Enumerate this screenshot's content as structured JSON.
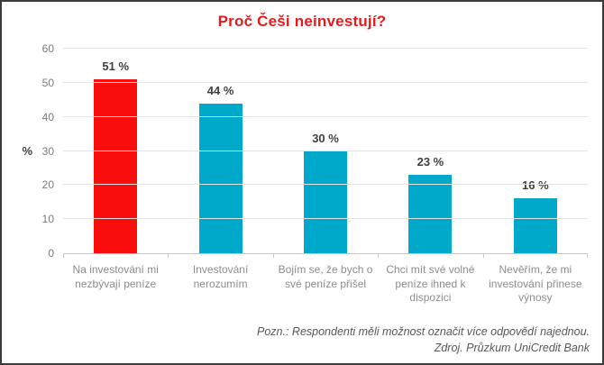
{
  "title": "Proč Češi neinvestují?",
  "colors": {
    "title_red": "#e11c1c",
    "bar_red": "#fa0d0d",
    "bar_teal": "#00a9ca",
    "gridline": "#e4e4e4",
    "axis_line": "#c8c8c8",
    "value_label": "#3f3f3f",
    "category_label": "#8c8c8c",
    "footer_text": "#565656",
    "frame_border": "#3b3b3b"
  },
  "chart_data": {
    "type": "bar",
    "title": "Proč Češi neinvestují?",
    "categories": [
      "Na investování mi nezbývají peníze",
      "Investování nerozumím",
      "Bojím se, že bych o své peníze přišel",
      "Chci mít své volné peníze ihned k dispozici",
      "Nevěřím, že mi investování přinese výnosy"
    ],
    "values": [
      51,
      44,
      30,
      23,
      16
    ],
    "value_labels": [
      "51 %",
      "44 %",
      "30 %",
      "23 %",
      "16 %"
    ],
    "bar_colors": [
      "#fa0d0d",
      "#00a9ca",
      "#00a9ca",
      "#00a9ca",
      "#00a9ca"
    ],
    "xlabel": "",
    "ylabel": "%",
    "ylim": [
      0,
      60
    ],
    "yticks": [
      0,
      10,
      20,
      30,
      40,
      50,
      60
    ],
    "grid": true,
    "legend": false
  },
  "footer": {
    "note": "Pozn.: Respondenti měli možnost označit více odpovědí najednou.",
    "source": "Zdroj. Průzkum UniCredit Bank"
  }
}
